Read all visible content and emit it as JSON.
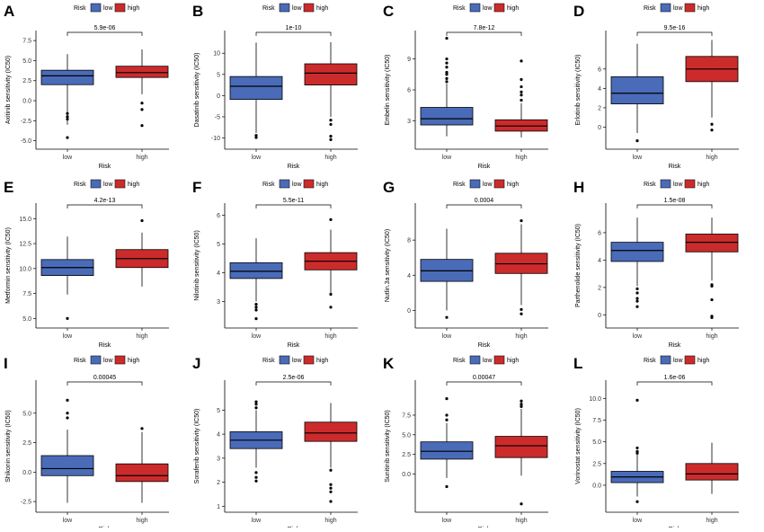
{
  "colors": {
    "low": "#4a6bb8",
    "high": "#cc2b2b",
    "outline": "#111111",
    "bg": "#ffffff"
  },
  "legend": {
    "title": "Risk",
    "low_label": "low",
    "high_label": "high"
  },
  "chart_data": [
    {
      "panel": "A",
      "type": "box",
      "ylabel": "Axitinib sensitivity (IC50)",
      "xlabel": "Risk",
      "categories": [
        "low",
        "high"
      ],
      "yticks": [
        -5.0,
        -2.5,
        0.0,
        2.5,
        5.0,
        7.5
      ],
      "ytick_labels": [
        "-5.0",
        "-2.5",
        "0.0",
        "2.5",
        "5.0",
        "7.5"
      ],
      "ylim": [
        -5.6,
        8.3
      ],
      "pvalue": "5.9e-06",
      "series": [
        {
          "whisker_low": -3.0,
          "q1": 2.0,
          "median": 3.1,
          "q3": 3.8,
          "whisker_high": 5.8,
          "outliers": [
            -1.6,
            -2.0,
            -2.3,
            -4.6
          ]
        },
        {
          "whisker_low": 0.8,
          "q1": 2.9,
          "median": 3.5,
          "q3": 4.3,
          "whisker_high": 6.4,
          "outliers": [
            -0.3,
            -1.1,
            -3.1
          ]
        }
      ]
    },
    {
      "panel": "B",
      "type": "box",
      "ylabel": "Dasatinib sensitivity (IC50)",
      "xlabel": "Risk",
      "categories": [
        "low",
        "high"
      ],
      "yticks": [
        -10,
        -5,
        0,
        5,
        10
      ],
      "ytick_labels": [
        "-10",
        "-5",
        "0",
        "5",
        "10"
      ],
      "ylim": [
        -11.8,
        14.5
      ],
      "pvalue": "1e-10",
      "series": [
        {
          "whisker_low": -8.8,
          "q1": -0.9,
          "median": 2.2,
          "q3": 4.5,
          "whisker_high": 12.5,
          "outliers": [
            -9.4,
            -9.9
          ]
        },
        {
          "whisker_low": -5.0,
          "q1": 2.5,
          "median": 5.3,
          "q3": 7.5,
          "whisker_high": 12.6,
          "outliers": [
            -5.8,
            -6.8,
            -9.6,
            -10.4
          ]
        }
      ]
    },
    {
      "panel": "C",
      "type": "box",
      "ylabel": "Embelin sensitivity (IC50)",
      "xlabel": "Risk",
      "categories": [
        "low",
        "high"
      ],
      "yticks": [
        3,
        6,
        9
      ],
      "ytick_labels": [
        "3",
        "6",
        "9"
      ],
      "ylim": [
        0.6,
        11.4
      ],
      "pvalue": "7.8e-12",
      "series": [
        {
          "whisker_low": 1.5,
          "q1": 2.6,
          "median": 3.2,
          "q3": 4.3,
          "whisker_high": 6.6,
          "outliers": [
            6.8,
            7.1,
            7.5,
            7.7,
            8.2,
            8.6,
            9.0,
            11.0
          ]
        },
        {
          "whisker_low": 1.4,
          "q1": 2.0,
          "median": 2.5,
          "q3": 3.1,
          "whisker_high": 4.7,
          "outliers": [
            5.0,
            5.5,
            5.8,
            6.3,
            7.0,
            8.8
          ]
        }
      ]
    },
    {
      "panel": "D",
      "type": "box",
      "ylabel": "Erlotinib sensitivity (IC50)",
      "xlabel": "Risk",
      "categories": [
        "low",
        "high"
      ],
      "yticks": [
        0,
        2,
        4,
        6
      ],
      "ytick_labels": [
        "0",
        "2",
        "4",
        "6"
      ],
      "ylim": [
        -1.9,
        9.6
      ],
      "pvalue": "9.5e-16",
      "series": [
        {
          "whisker_low": -0.6,
          "q1": 2.4,
          "median": 3.5,
          "q3": 5.2,
          "whisker_high": 8.6,
          "outliers": [
            -1.4
          ]
        },
        {
          "whisker_low": 1.0,
          "q1": 4.7,
          "median": 6.0,
          "q3": 7.3,
          "whisker_high": 9.0,
          "outliers": [
            0.3,
            -0.3
          ]
        }
      ]
    },
    {
      "panel": "E",
      "type": "box",
      "ylabel": "Metformin sensitivity (IC50)",
      "xlabel": "Risk",
      "categories": [
        "low",
        "high"
      ],
      "yticks": [
        5.0,
        7.5,
        10.0,
        12.5,
        15.0
      ],
      "ytick_labels": [
        "5.0",
        "7.5",
        "10.0",
        "12.5",
        "15.0"
      ],
      "ylim": [
        4.4,
        16.2
      ],
      "pvalue": "4.2e-13",
      "series": [
        {
          "whisker_low": 7.4,
          "q1": 9.3,
          "median": 10.1,
          "q3": 10.9,
          "whisker_high": 13.2,
          "outliers": [
            5.0
          ]
        },
        {
          "whisker_low": 8.2,
          "q1": 10.1,
          "median": 11.0,
          "q3": 11.9,
          "whisker_high": 13.6,
          "outliers": [
            14.8
          ]
        }
      ]
    },
    {
      "panel": "F",
      "type": "box",
      "ylabel": "Nilotinib sensitivity (IC50)",
      "xlabel": "Risk",
      "categories": [
        "low",
        "high"
      ],
      "yticks": [
        3,
        4,
        5,
        6
      ],
      "ytick_labels": [
        "3",
        "4",
        "5",
        "6"
      ],
      "ylim": [
        2.2,
        6.3
      ],
      "pvalue": "5.5e-11",
      "series": [
        {
          "whisker_low": 3.0,
          "q1": 3.8,
          "median": 4.05,
          "q3": 4.35,
          "whisker_high": 5.2,
          "outliers": [
            2.9,
            2.8,
            2.7,
            2.4
          ]
        },
        {
          "whisker_low": 3.3,
          "q1": 4.1,
          "median": 4.4,
          "q3": 4.7,
          "whisker_high": 5.5,
          "outliers": [
            5.85,
            3.25,
            2.8
          ]
        }
      ]
    },
    {
      "panel": "G",
      "type": "box",
      "ylabel": "Nutlin.3a sensitivity (IC50)",
      "xlabel": "Risk",
      "categories": [
        "low",
        "high"
      ],
      "yticks": [
        0,
        4,
        8
      ],
      "ytick_labels": [
        "0",
        "4",
        "8"
      ],
      "ylim": [
        -1.6,
        11.8
      ],
      "pvalue": "0.0004",
      "series": [
        {
          "whisker_low": 0.0,
          "q1": 3.3,
          "median": 4.5,
          "q3": 5.8,
          "whisker_high": 9.3,
          "outliers": [
            -0.8
          ]
        },
        {
          "whisker_low": 0.6,
          "q1": 4.2,
          "median": 5.3,
          "q3": 6.5,
          "whisker_high": 9.8,
          "outliers": [
            10.2,
            0.1,
            -0.4
          ]
        }
      ]
    },
    {
      "panel": "H",
      "type": "box",
      "ylabel": "Parthenolide sensitivity (IC50)",
      "xlabel": "Risk",
      "categories": [
        "low",
        "high"
      ],
      "yticks": [
        0,
        2,
        4,
        6
      ],
      "ytick_labels": [
        "0",
        "2",
        "4",
        "6"
      ],
      "ylim": [
        -0.7,
        7.9
      ],
      "pvalue": "1.5e-08",
      "series": [
        {
          "whisker_low": 2.1,
          "q1": 3.9,
          "median": 4.7,
          "q3": 5.3,
          "whisker_high": 7.1,
          "outliers": [
            1.9,
            1.6,
            1.2,
            1.0,
            0.6
          ]
        },
        {
          "whisker_low": 2.5,
          "q1": 4.6,
          "median": 5.3,
          "q3": 5.9,
          "whisker_high": 7.1,
          "outliers": [
            2.2,
            2.1,
            1.1,
            -0.1,
            -0.2
          ]
        }
      ]
    },
    {
      "panel": "I",
      "type": "box",
      "ylabel": "Shikonin sensitivity (IC50)",
      "xlabel": "Risk",
      "categories": [
        "low",
        "high"
      ],
      "yticks": [
        -2.5,
        0.0,
        2.5,
        5.0
      ],
      "ytick_labels": [
        "-2.5",
        "0.0",
        "2.5",
        "5.0"
      ],
      "ylim": [
        -3.1,
        7.5
      ],
      "pvalue": "0.00045",
      "series": [
        {
          "whisker_low": -2.6,
          "q1": -0.3,
          "median": 0.3,
          "q3": 1.4,
          "whisker_high": 3.6,
          "outliers": [
            6.1,
            5.0,
            4.6
          ]
        },
        {
          "whisker_low": -2.6,
          "q1": -0.8,
          "median": -0.3,
          "q3": 0.7,
          "whisker_high": 3.4,
          "outliers": [
            3.7
          ]
        }
      ]
    },
    {
      "panel": "J",
      "type": "box",
      "ylabel": "Sorafenib sensitivity (IC50)",
      "xlabel": "Risk",
      "categories": [
        "low",
        "high"
      ],
      "yticks": [
        1,
        2,
        3,
        4,
        5
      ],
      "ytick_labels": [
        "1",
        "2",
        "3",
        "4",
        "5"
      ],
      "ylim": [
        0.9,
        6.1
      ],
      "pvalue": "2.5e-06",
      "series": [
        {
          "whisker_low": 2.6,
          "q1": 3.4,
          "median": 3.75,
          "q3": 4.1,
          "whisker_high": 5.0,
          "outliers": [
            5.35,
            5.25,
            5.1,
            2.4,
            2.2,
            2.05
          ]
        },
        {
          "whisker_low": 2.6,
          "q1": 3.7,
          "median": 4.05,
          "q3": 4.5,
          "whisker_high": 5.3,
          "outliers": [
            2.5,
            1.9,
            1.75,
            1.6,
            1.2
          ]
        }
      ]
    },
    {
      "panel": "K",
      "type": "box",
      "ylabel": "Sunitinib sensitivity (IC50)",
      "xlabel": "Risk",
      "categories": [
        "low",
        "high"
      ],
      "yticks": [
        0.0,
        2.5,
        5.0,
        7.5
      ],
      "ytick_labels": [
        "0.0",
        "2.5",
        "5.0",
        "7.5"
      ],
      "ylim": [
        -4.4,
        11.5
      ],
      "pvalue": "0.00047",
      "series": [
        {
          "whisker_low": -0.5,
          "q1": 1.9,
          "median": 2.9,
          "q3": 4.1,
          "whisker_high": 6.5,
          "outliers": [
            9.6,
            7.5,
            6.9,
            -1.6
          ]
        },
        {
          "whisker_low": -0.2,
          "q1": 2.1,
          "median": 3.6,
          "q3": 4.8,
          "whisker_high": 8.3,
          "outliers": [
            9.3,
            8.9,
            8.6,
            -3.8
          ]
        }
      ]
    },
    {
      "panel": "L",
      "type": "box",
      "ylabel": "Vorinostat sensitivity (IC50)",
      "xlabel": "Risk",
      "categories": [
        "low",
        "high"
      ],
      "yticks": [
        0.0,
        2.5,
        5.0,
        7.5,
        10.0
      ],
      "ytick_labels": [
        "0.0",
        "2.5",
        "5.0",
        "7.5",
        "10.0"
      ],
      "ylim": [
        -2.7,
        11.7
      ],
      "pvalue": "1.6e-06",
      "series": [
        {
          "whisker_low": -1.3,
          "q1": 0.3,
          "median": 0.95,
          "q3": 1.6,
          "whisker_high": 3.6,
          "outliers": [
            9.8,
            4.3,
            3.9,
            3.7,
            -1.9
          ]
        },
        {
          "whisker_low": -1.0,
          "q1": 0.6,
          "median": 1.3,
          "q3": 2.5,
          "whisker_high": 4.9,
          "outliers": []
        }
      ]
    }
  ]
}
